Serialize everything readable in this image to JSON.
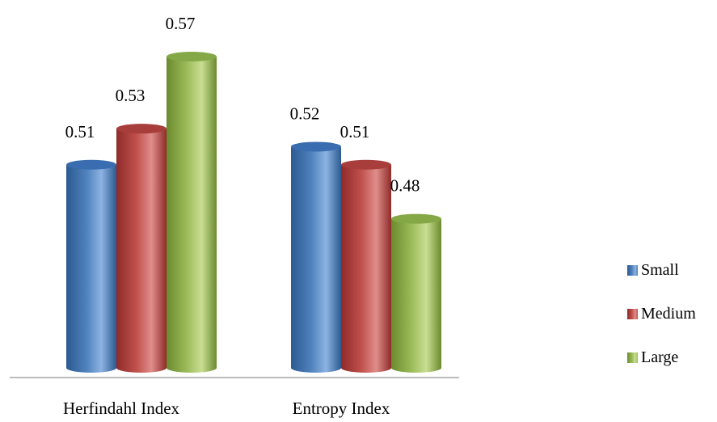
{
  "chart_data": {
    "type": "bar",
    "categories": [
      "Herfindahl Index",
      "Entropy Index"
    ],
    "series": [
      {
        "name": "Small",
        "values": [
          0.51,
          0.52
        ]
      },
      {
        "name": "Medium",
        "values": [
          0.53,
          0.51
        ]
      },
      {
        "name": "Large",
        "values": [
          0.57,
          0.48
        ]
      }
    ],
    "title": "",
    "xlabel": "",
    "ylabel": "",
    "ylim": [
      0.4,
      0.58
    ],
    "grid": false,
    "legend": "right",
    "colors": {
      "Small": {
        "base": "#4F81BD",
        "dark": "#2C5A91",
        "light": "#8DB3E2",
        "top": "#3A6DB0"
      },
      "Medium": {
        "base": "#C0504D",
        "dark": "#8E2B29",
        "light": "#E08E8B",
        "top": "#A83E3B"
      },
      "Large": {
        "base": "#9BBB59",
        "dark": "#6B8A2E",
        "light": "#C9DE92",
        "top": "#85A847"
      },
      "axis": "#A6A6A6"
    }
  }
}
